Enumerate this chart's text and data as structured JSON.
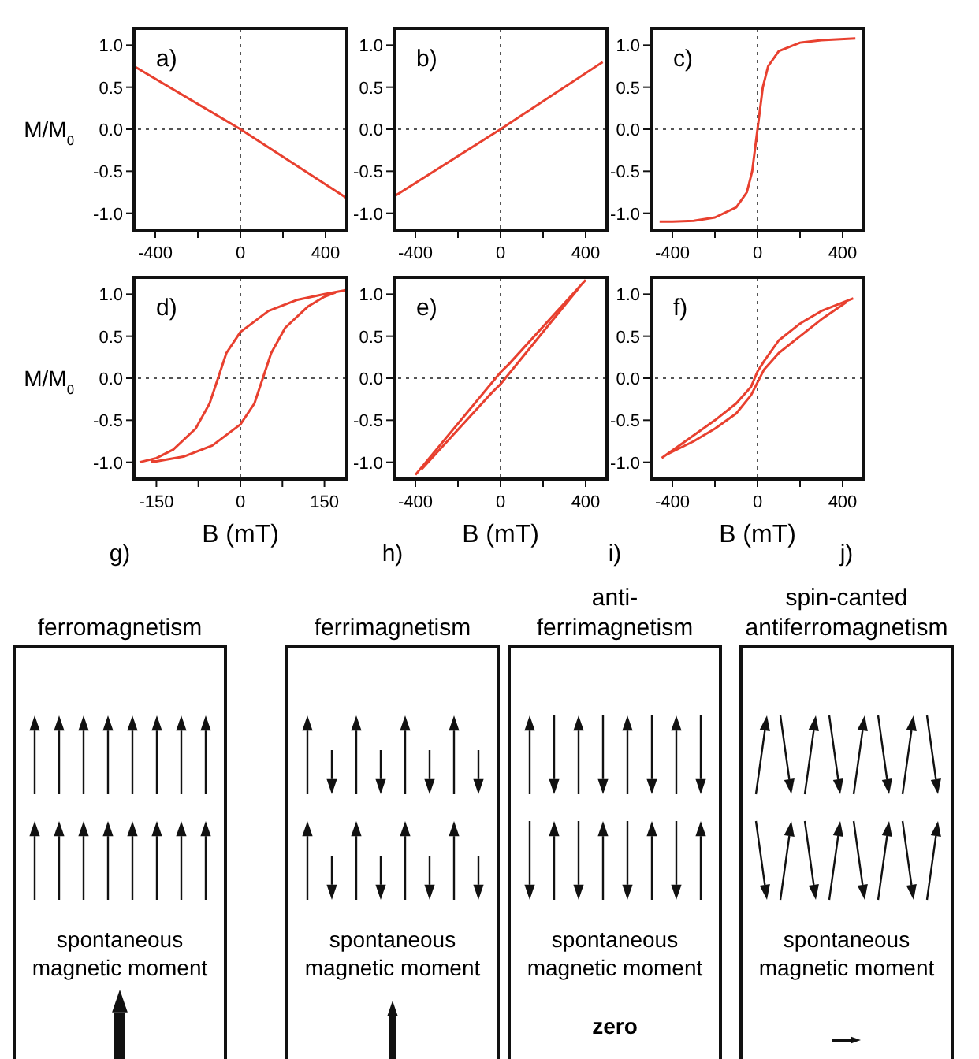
{
  "chart_data": [
    {
      "type": "line",
      "annotations": [
        "a)"
      ],
      "ylabel": "M/M$_{0}$",
      "xlim": [
        -500,
        500
      ],
      "xticks": [
        -400,
        {
          "value": -200,
          "label": null
        },
        0,
        {
          "value": 200,
          "label": null
        },
        400
      ],
      "ylim": [
        -1.2,
        1.2
      ],
      "yticks": [
        {
          "value": -1,
          "label": "-1.0"
        },
        {
          "value": -0.5,
          "label": "-0.5"
        },
        {
          "value": 0,
          "label": "0.0"
        },
        {
          "value": 0.5,
          "label": "0.5"
        },
        {
          "value": 1,
          "label": "1.0"
        }
      ],
      "ref_lines": [
        {
          "axis": "x",
          "value": 0,
          "line_style": "dotted",
          "color": "#555555"
        },
        {
          "axis": "y",
          "value": 0,
          "line_style": "dotted",
          "color": "#555555"
        }
      ],
      "series": [
        {
          "color": "#e8402f",
          "x": [
            -500,
            0,
            500
          ],
          "values": [
            0.75,
            0,
            -0.82
          ]
        }
      ]
    },
    {
      "type": "line",
      "annotations": [
        "b)"
      ],
      "xlim": [
        -500,
        500
      ],
      "xticks": [
        -400,
        {
          "value": -200,
          "label": null
        },
        0,
        {
          "value": 200,
          "label": null
        },
        400
      ],
      "ylim": [
        -1.2,
        1.2
      ],
      "yticks": [
        {
          "value": -1,
          "label": "-1.0"
        },
        {
          "value": -0.5,
          "label": "-0.5"
        },
        {
          "value": 0,
          "label": "0.0"
        },
        {
          "value": 0.5,
          "label": "0.5"
        },
        {
          "value": 1,
          "label": "1.0"
        }
      ],
      "ref_lines": [
        {
          "axis": "x",
          "value": 0,
          "line_style": "dotted",
          "color": "#555555"
        },
        {
          "axis": "y",
          "value": 0,
          "line_style": "dotted",
          "color": "#555555"
        }
      ],
      "series": [
        {
          "color": "#e8402f",
          "x": [
            -500,
            0,
            480
          ],
          "values": [
            -0.8,
            0,
            0.8
          ]
        }
      ]
    },
    {
      "type": "line",
      "annotations": [
        "c)"
      ],
      "xlim": [
        -500,
        500
      ],
      "xticks": [
        -400,
        {
          "value": -200,
          "label": null
        },
        0,
        {
          "value": 200,
          "label": null
        },
        400
      ],
      "ylim": [
        -1.2,
        1.2
      ],
      "yticks": [
        {
          "value": -1,
          "label": "-1.0"
        },
        {
          "value": -0.5,
          "label": "-0.5"
        },
        {
          "value": 0,
          "label": "0.0"
        },
        {
          "value": 0.5,
          "label": "0.5"
        },
        {
          "value": 1,
          "label": "1.0"
        }
      ],
      "ref_lines": [
        {
          "axis": "x",
          "value": 0,
          "line_style": "dotted",
          "color": "#555555"
        },
        {
          "axis": "y",
          "value": 0,
          "line_style": "dotted",
          "color": "#555555"
        }
      ],
      "series": [
        {
          "color": "#e8402f",
          "x": [
            -460,
            -400,
            -300,
            -200,
            -100,
            -50,
            -25,
            0,
            25,
            50,
            100,
            200,
            300,
            460
          ],
          "values": [
            -1.1,
            -1.1,
            -1.09,
            -1.05,
            -0.93,
            -0.75,
            -0.5,
            0,
            0.5,
            0.75,
            0.93,
            1.03,
            1.06,
            1.08
          ]
        }
      ]
    },
    {
      "type": "line",
      "annotations": [
        "d)"
      ],
      "ylabel": "M/M$_{0}$",
      "xlabel": "B (mT)",
      "xlim": [
        -190,
        190
      ],
      "xticks": [
        -150,
        {
          "value": -75,
          "label": null
        },
        0,
        {
          "value": 75,
          "label": null
        },
        150
      ],
      "ylim": [
        -1.2,
        1.2
      ],
      "yticks": [
        {
          "value": -1,
          "label": "-1.0"
        },
        {
          "value": -0.5,
          "label": "-0.5"
        },
        {
          "value": 0,
          "label": "0.0"
        },
        {
          "value": 0.5,
          "label": "0.5"
        },
        {
          "value": 1,
          "label": "1.0"
        }
      ],
      "ref_lines": [
        {
          "axis": "x",
          "value": 0,
          "line_style": "dotted",
          "color": "#555555"
        },
        {
          "axis": "y",
          "value": 0,
          "line_style": "dotted",
          "color": "#555555"
        }
      ],
      "series": [
        {
          "color": "#e8402f",
          "x": [
            190,
            150,
            100,
            50,
            0,
            -25,
            -40,
            -55,
            -80,
            -120,
            -150,
            -180
          ],
          "values": [
            1.05,
            1.0,
            0.93,
            0.8,
            0.55,
            0.3,
            0,
            -0.3,
            -0.6,
            -0.85,
            -0.95,
            -1.0
          ]
        },
        {
          "color": "#e8402f",
          "x": [
            -160,
            -150,
            -100,
            -50,
            0,
            25,
            40,
            55,
            80,
            120,
            150,
            170
          ],
          "values": [
            -0.99,
            -0.99,
            -0.93,
            -0.8,
            -0.55,
            -0.3,
            0,
            0.3,
            0.6,
            0.85,
            0.97,
            1.02
          ]
        }
      ]
    },
    {
      "type": "line",
      "annotations": [
        "e)"
      ],
      "xlabel": "B (mT)",
      "xlim": [
        -500,
        500
      ],
      "xticks": [
        -400,
        {
          "value": -200,
          "label": null
        },
        0,
        {
          "value": 200,
          "label": null
        },
        400
      ],
      "ylim": [
        -1.2,
        1.2
      ],
      "yticks": [
        {
          "value": -1,
          "label": "-1.0"
        },
        {
          "value": -0.5,
          "label": "-0.5"
        },
        {
          "value": 0,
          "label": "0.0"
        },
        {
          "value": 0.5,
          "label": "0.5"
        },
        {
          "value": 1,
          "label": "1.0"
        }
      ],
      "ref_lines": [
        {
          "axis": "x",
          "value": 0,
          "line_style": "dotted",
          "color": "#555555"
        },
        {
          "axis": "y",
          "value": 0,
          "line_style": "dotted",
          "color": "#555555"
        }
      ],
      "series": [
        {
          "color": "#e8402f",
          "x": [
            400,
            40,
            0,
            -400
          ],
          "values": [
            1.17,
            0.17,
            0.07,
            -1.15
          ]
        },
        {
          "color": "#e8402f",
          "x": [
            -370,
            -40,
            0,
            370
          ],
          "values": [
            -1.08,
            -0.17,
            -0.07,
            1.08
          ]
        }
      ]
    },
    {
      "type": "line",
      "annotations": [
        "f)"
      ],
      "xlabel": "B (mT)",
      "xlim": [
        -500,
        500
      ],
      "xticks": [
        -400,
        {
          "value": -200,
          "label": null
        },
        0,
        {
          "value": 200,
          "label": null
        },
        400
      ],
      "ylim": [
        -1.2,
        1.2
      ],
      "yticks": [
        {
          "value": -1,
          "label": "-1.0"
        },
        {
          "value": -0.5,
          "label": "-0.5"
        },
        {
          "value": 0,
          "label": "0.0"
        },
        {
          "value": 0.5,
          "label": "0.5"
        },
        {
          "value": 1,
          "label": "1.0"
        }
      ],
      "ref_lines": [
        {
          "axis": "x",
          "value": 0,
          "line_style": "dotted",
          "color": "#555555"
        },
        {
          "axis": "y",
          "value": 0,
          "line_style": "dotted",
          "color": "#555555"
        }
      ],
      "series": [
        {
          "color": "#e8402f",
          "x": [
            450,
            300,
            200,
            100,
            30,
            0,
            -30,
            -100,
            -200,
            -300,
            -450
          ],
          "values": [
            0.95,
            0.8,
            0.65,
            0.45,
            0.2,
            0.08,
            -0.1,
            -0.3,
            -0.5,
            -0.68,
            -0.95
          ]
        },
        {
          "color": "#e8402f",
          "x": [
            -420,
            -300,
            -200,
            -100,
            -30,
            0,
            30,
            100,
            200,
            300,
            420
          ],
          "values": [
            -0.9,
            -0.75,
            -0.6,
            -0.42,
            -0.2,
            -0.05,
            0.1,
            0.3,
            0.5,
            0.7,
            0.91
          ]
        }
      ]
    },
    {
      "type": "other",
      "title": "g)",
      "subtitle": "ferromagnetism",
      "annotations": [
        "spontaneous\nmagnetic moment"
      ]
    },
    {
      "type": "other",
      "title": "h)",
      "subtitle": "ferrimagnetism",
      "annotations": [
        "spontaneous\nmagnetic moment"
      ]
    },
    {
      "type": "other",
      "title": "i)",
      "subtitle": "anti-\nferrimagnetism",
      "annotations": [
        "spontaneous\nmagnetic moment",
        "zero"
      ]
    },
    {
      "type": "other",
      "title": "j)",
      "subtitle": "spin-canted\nantiferromagnetism",
      "annotations": [
        "spontaneous\nmagnetic moment"
      ]
    }
  ]
}
